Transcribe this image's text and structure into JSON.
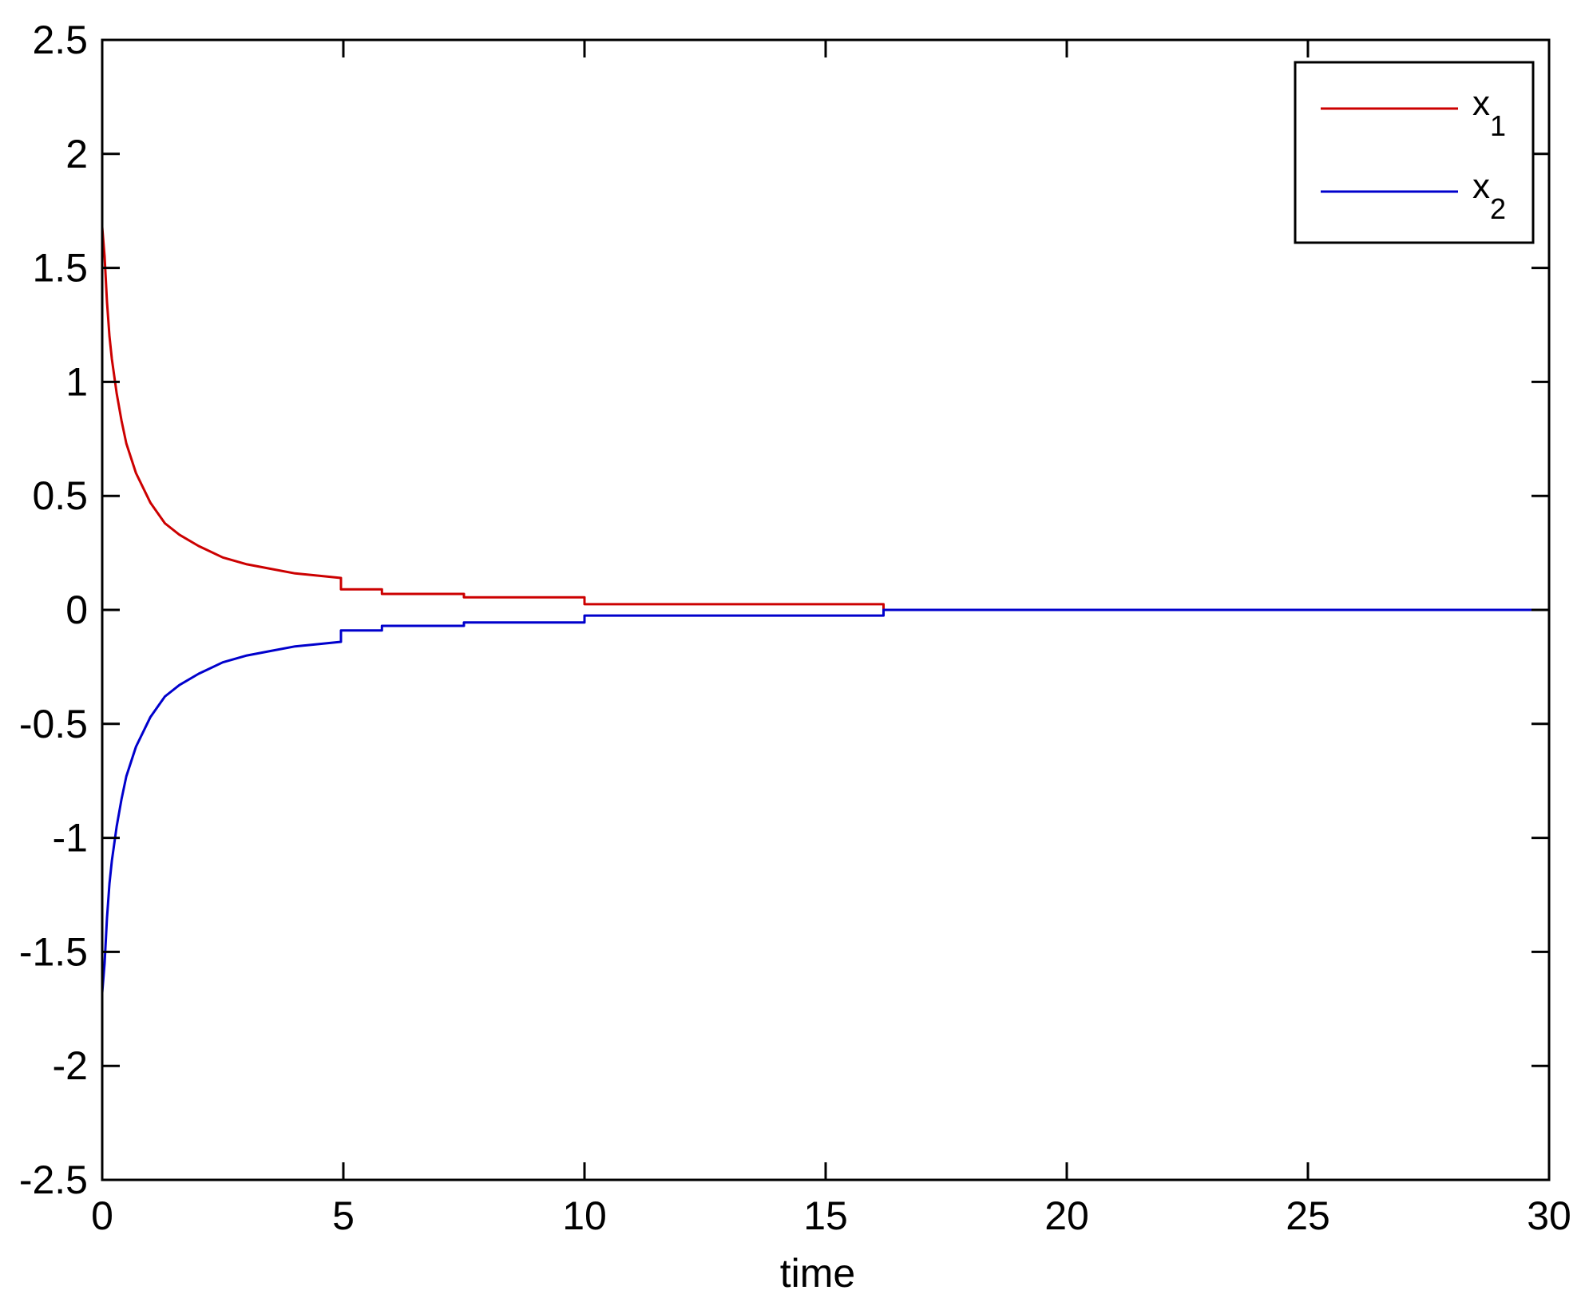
{
  "chart_data": {
    "type": "line",
    "title": "",
    "xlabel": "time",
    "ylabel": "",
    "xlim": [
      0,
      30
    ],
    "ylim": [
      -2.5,
      2.5
    ],
    "xticks": [
      0,
      5,
      10,
      15,
      20,
      25,
      30
    ],
    "xtick_labels": [
      "0",
      "5",
      "10",
      "15",
      "20",
      "25",
      "30"
    ],
    "yticks": [
      2.5,
      2,
      1.5,
      1,
      0.5,
      0,
      -0.5,
      -1,
      -1.5,
      -2,
      -2.5
    ],
    "ytick_labels": [
      "2.5",
      "2",
      "1.5",
      "1",
      "0.5",
      "0",
      "-0.5",
      "-1",
      "-1.5",
      "-2",
      "-2.5"
    ],
    "grid": false,
    "legend_position": "top-right",
    "series": [
      {
        "name": "x",
        "subscript": "1",
        "color": "#cc0000",
        "x": [
          0.0,
          0.05,
          0.1,
          0.15,
          0.2,
          0.3,
          0.4,
          0.5,
          0.7,
          1.0,
          1.3,
          1.6,
          2.0,
          2.5,
          3.0,
          3.5,
          4.0,
          4.5,
          4.95,
          4.95,
          5.8,
          5.8,
          7.5,
          7.5,
          10.0,
          10.0,
          16.2,
          16.2,
          30.0
        ],
        "y": [
          1.68,
          1.55,
          1.35,
          1.2,
          1.1,
          0.95,
          0.83,
          0.73,
          0.6,
          0.47,
          0.38,
          0.33,
          0.28,
          0.23,
          0.2,
          0.18,
          0.16,
          0.15,
          0.14,
          0.09,
          0.09,
          0.07,
          0.07,
          0.055,
          0.055,
          0.025,
          0.025,
          0.0,
          0.0
        ]
      },
      {
        "name": "x",
        "subscript": "2",
        "color": "#0000cc",
        "x": [
          0.0,
          0.05,
          0.1,
          0.15,
          0.2,
          0.3,
          0.4,
          0.5,
          0.7,
          1.0,
          1.3,
          1.6,
          2.0,
          2.5,
          3.0,
          3.5,
          4.0,
          4.5,
          4.95,
          4.95,
          5.8,
          5.8,
          7.5,
          7.5,
          10.0,
          10.0,
          16.2,
          16.2,
          30.0
        ],
        "y": [
          -1.68,
          -1.55,
          -1.35,
          -1.2,
          -1.1,
          -0.95,
          -0.83,
          -0.73,
          -0.6,
          -0.47,
          -0.38,
          -0.33,
          -0.28,
          -0.23,
          -0.2,
          -0.18,
          -0.16,
          -0.15,
          -0.14,
          -0.09,
          -0.09,
          -0.07,
          -0.07,
          -0.055,
          -0.055,
          -0.025,
          -0.025,
          0.0,
          0.0
        ]
      }
    ]
  }
}
